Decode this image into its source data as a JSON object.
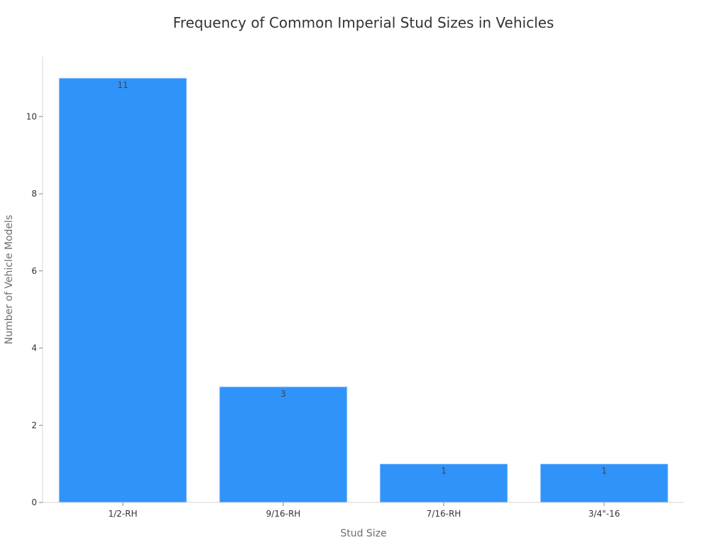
{
  "chart_data": {
    "type": "bar",
    "title": "Frequency of Common Imperial Stud Sizes in Vehicles",
    "xlabel": "Stud Size",
    "ylabel": "Number of Vehicle Models",
    "categories": [
      "1/2-RH",
      "9/16-RH",
      "7/16-RH",
      "3/4\"-16"
    ],
    "values": [
      11,
      3,
      1,
      1
    ],
    "data_labels": [
      "11",
      "3",
      "1",
      "1"
    ],
    "yticks": [
      0,
      2,
      4,
      6,
      8,
      10
    ],
    "ylim": [
      0,
      11.55
    ],
    "grid": false,
    "bar_color": "#3093f9",
    "bar_edge_color": "#d8e9fb"
  }
}
